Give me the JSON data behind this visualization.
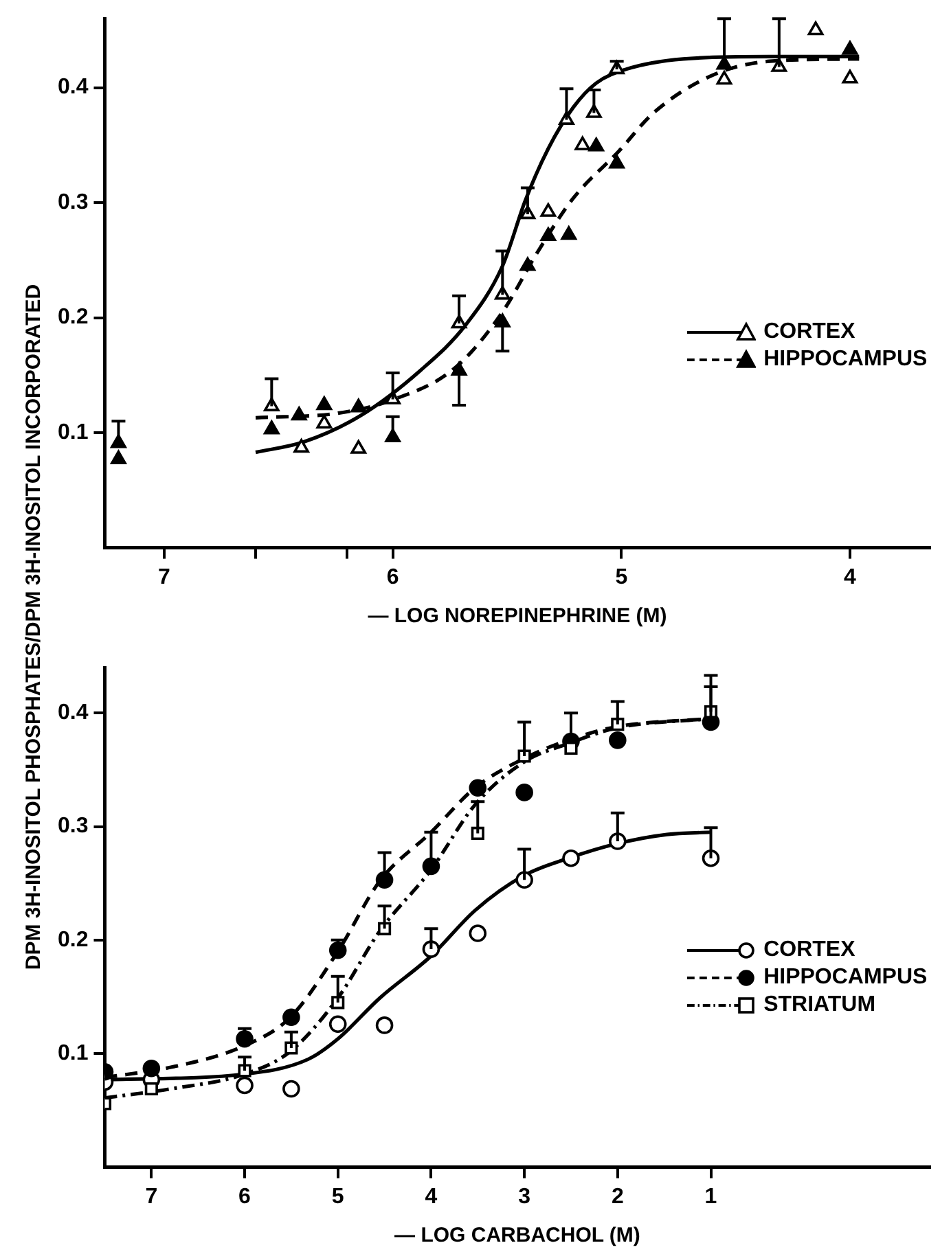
{
  "chart_data": [
    {
      "type": "scatter",
      "ylabel": "DPM 3H-INOSITOL PHOSPHATES/DPM 3H-INOSITOL INCORPORATED",
      "xlabel": "— LOG NOREPINEPHRINE (M)",
      "xlim": [
        7.26,
        3.65
      ],
      "xticks": [
        7,
        {
          "value": 6.6,
          "label": null
        },
        {
          "value": 6.2,
          "label": null
        },
        6,
        5,
        4
      ],
      "ylim": [
        0,
        0.46
      ],
      "yticks": [
        0.1,
        0.2,
        0.3,
        0.4
      ],
      "grid": false,
      "legend": "right",
      "series": [
        {
          "type": "line",
          "color": "#000000",
          "marker": "none",
          "line_style": "solid",
          "x": [
            6.6,
            6.39,
            6.14,
            5.88,
            5.68,
            5.52,
            5.42,
            5.32,
            5.21,
            5.11,
            4.98,
            4.73,
            4.35,
            3.96
          ],
          "values": [
            0.083,
            0.092,
            0.115,
            0.154,
            0.194,
            0.245,
            0.302,
            0.347,
            0.383,
            0.404,
            0.416,
            0.425,
            0.427,
            0.427
          ]
        },
        {
          "type": "line",
          "color": "#000000",
          "marker": "none",
          "line_style": "dashed",
          "x": [
            6.6,
            6.24,
            6.01,
            5.73,
            5.52,
            5.37,
            5.21,
            5.01,
            4.86,
            4.6,
            4.35,
            3.96
          ],
          "values": [
            0.113,
            0.117,
            0.128,
            0.156,
            0.205,
            0.256,
            0.304,
            0.345,
            0.378,
            0.411,
            0.423,
            0.425
          ]
        },
        {
          "type": "scatter",
          "name": "CORTEX",
          "color": "#ffffff",
          "marker": "triangle",
          "line_style": "solid",
          "x": [
            6.53,
            6.4,
            6.3,
            6.15,
            6.0,
            5.71,
            5.52,
            5.41,
            5.32,
            5.24,
            5.17,
            5.12,
            5.02,
            4.55,
            4.31,
            4.15,
            4.0
          ],
          "values": [
            0.123,
            0.087,
            0.108,
            0.086,
            0.129,
            0.195,
            0.22,
            0.29,
            0.292,
            0.372,
            0.35,
            0.378,
            0.416,
            0.407,
            0.418,
            0.45,
            0.408
          ],
          "errors": [
            [
              0.123,
              0.147
            ],
            null,
            null,
            null,
            [
              0.129,
              0.152
            ],
            [
              0.195,
              0.219
            ],
            [
              0.22,
              0.258
            ],
            [
              0.29,
              0.313
            ],
            null,
            [
              0.372,
              0.399
            ],
            null,
            [
              0.378,
              0.398
            ],
            [
              0.416,
              0.423
            ],
            null,
            [
              0.418,
              0.46
            ],
            null,
            null
          ]
        },
        {
          "type": "scatter",
          "name": "HIPPOCAMPUS",
          "color": "#000000",
          "marker": "triangle",
          "line_style": "dashed",
          "x": [
            7.2,
            7.2,
            6.53,
            6.41,
            6.3,
            6.15,
            6.0,
            5.71,
            5.52,
            5.41,
            5.32,
            5.23,
            5.11,
            5.02,
            4.55,
            4.0
          ],
          "values": [
            0.091,
            0.077,
            0.103,
            0.115,
            0.124,
            0.122,
            0.096,
            0.154,
            0.196,
            0.245,
            0.271,
            0.272,
            0.349,
            0.334,
            0.42,
            0.433
          ],
          "errors": [
            [
              0.091,
              0.11
            ],
            null,
            null,
            null,
            null,
            null,
            [
              0.096,
              0.114
            ],
            [
              0.124,
              0.154
            ],
            [
              0.171,
              0.196
            ],
            null,
            null,
            null,
            null,
            null,
            [
              0.42,
              0.46
            ],
            null
          ]
        }
      ]
    },
    {
      "type": "scatter",
      "xlabel": "— LOG CARBACHOL (M)",
      "xlim": [
        7.5,
        -1.35
      ],
      "xticks": [
        7,
        6,
        5,
        4,
        3,
        2,
        1
      ],
      "ylim": [
        0,
        0.44
      ],
      "yticks": [
        0.1,
        0.2,
        0.3,
        0.4
      ],
      "grid": false,
      "legend": "right",
      "series": [
        {
          "type": "line",
          "color": "#000000",
          "marker": "none",
          "line_style": "solid",
          "x": [
            7.5,
            6,
            5.32,
            5,
            4.55,
            4,
            3.53,
            3,
            2.53,
            2,
            1.47,
            1
          ],
          "values": [
            0.077,
            0.082,
            0.095,
            0.113,
            0.149,
            0.186,
            0.226,
            0.257,
            0.272,
            0.285,
            0.293,
            0.295
          ]
        },
        {
          "type": "line",
          "color": "#000000",
          "marker": "none",
          "line_style": "dashed",
          "x": [
            7.5,
            6.79,
            6,
            5.51,
            5,
            4.55,
            4,
            3.53,
            3,
            2.53,
            2,
            1
          ],
          "values": [
            0.079,
            0.088,
            0.107,
            0.132,
            0.19,
            0.252,
            0.295,
            0.334,
            0.36,
            0.376,
            0.388,
            0.395
          ]
        },
        {
          "type": "line",
          "color": "#000000",
          "marker": "none",
          "line_style": "dashdot",
          "x": [
            7.5,
            6.79,
            6,
            5.51,
            5,
            4.55,
            4,
            3.53,
            3,
            2.53,
            2,
            1
          ],
          "values": [
            0.061,
            0.069,
            0.082,
            0.102,
            0.149,
            0.208,
            0.262,
            0.319,
            0.357,
            0.373,
            0.387,
            0.395
          ]
        },
        {
          "type": "scatter",
          "name": "CORTEX",
          "color": "#ffffff",
          "marker": "circle",
          "line_style": "solid",
          "x": [
            7.5,
            7,
            6,
            5.5,
            5,
            4.5,
            4,
            3.5,
            3,
            2.5,
            2,
            1
          ],
          "values": [
            0.075,
            0.077,
            0.072,
            0.069,
            0.126,
            0.125,
            0.192,
            0.206,
            0.253,
            0.272,
            0.287,
            0.272
          ],
          "errors": [
            null,
            null,
            null,
            null,
            null,
            null,
            [
              0.192,
              0.21
            ],
            null,
            [
              0.253,
              0.28
            ],
            null,
            [
              0.287,
              0.312
            ],
            [
              0.272,
              0.299
            ]
          ]
        },
        {
          "type": "scatter",
          "name": "HIPPOCAMPUS",
          "color": "#000000",
          "marker": "circle",
          "line_style": "dashed",
          "x": [
            7.5,
            7,
            6,
            5.5,
            5,
            4.5,
            4,
            3.5,
            3,
            2.5,
            2,
            1
          ],
          "values": [
            0.084,
            0.087,
            0.113,
            0.132,
            0.191,
            0.253,
            0.265,
            0.334,
            0.33,
            0.375,
            0.376,
            0.392
          ],
          "errors": [
            null,
            null,
            [
              0.113,
              0.122
            ],
            null,
            [
              0.191,
              0.2
            ],
            [
              0.253,
              0.277
            ],
            [
              0.265,
              0.295
            ],
            null,
            null,
            [
              0.375,
              0.4
            ],
            null,
            [
              0.392,
              0.423
            ]
          ]
        },
        {
          "type": "scatter",
          "name": "STRIATUM",
          "color": "#ffffff",
          "marker": "square",
          "line_style": "dashdot",
          "x": [
            7.5,
            7,
            6,
            5.5,
            5,
            4.5,
            3.5,
            3,
            2.5,
            2,
            1
          ],
          "values": [
            0.056,
            0.069,
            0.085,
            0.105,
            0.145,
            0.21,
            0.294,
            0.362,
            0.369,
            0.39,
            0.401
          ],
          "errors": [
            null,
            null,
            [
              0.085,
              0.097
            ],
            [
              0.105,
              0.119
            ],
            [
              0.145,
              0.168
            ],
            [
              0.21,
              0.23
            ],
            [
              0.294,
              0.322
            ],
            [
              0.362,
              0.392
            ],
            null,
            [
              0.39,
              0.41
            ],
            [
              0.401,
              0.433
            ]
          ]
        }
      ]
    }
  ]
}
